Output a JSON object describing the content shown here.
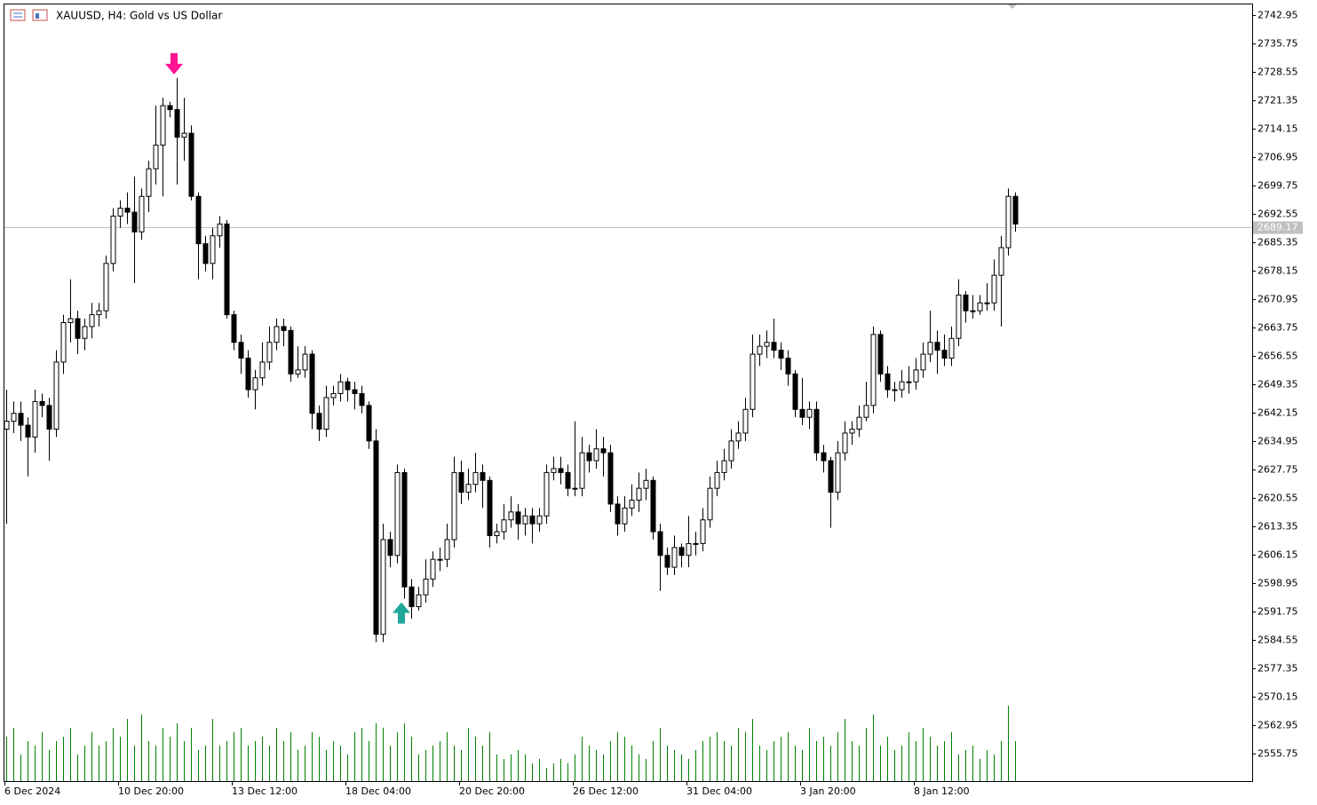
{
  "chart_data": {
    "type": "candlestick",
    "title": "XAUUSD, H4:  Gold vs US Dollar",
    "x": [
      "6 Dec 2024",
      null,
      null,
      null,
      null,
      null,
      null,
      null,
      null,
      null,
      null,
      null,
      null,
      null,
      null,
      null,
      "10 Dec 20:00",
      null,
      null,
      null,
      null,
      null,
      null,
      null,
      null,
      null,
      null,
      null,
      null,
      null,
      null,
      null,
      "13 Dec 12:00",
      null,
      null,
      null,
      null,
      null,
      null,
      null,
      null,
      null,
      null,
      null,
      null,
      null,
      null,
      null,
      "18 Dec 04:00",
      null,
      null,
      null,
      null,
      null,
      null,
      null,
      null,
      null,
      null,
      null,
      null,
      null,
      null,
      null,
      "20 Dec 20:00",
      null,
      null,
      null,
      null,
      null,
      null,
      null,
      null,
      null,
      null,
      null,
      null,
      null,
      null,
      null,
      "26 Dec 12:00",
      null,
      null,
      null,
      null,
      null,
      null,
      null,
      null,
      null,
      null,
      null,
      null,
      null,
      null,
      null,
      "31 Dec 04:00",
      null,
      null,
      null,
      null,
      null,
      null,
      null,
      null,
      null,
      null,
      null,
      null,
      null,
      null,
      null,
      "3 Jan 20:00",
      null,
      null,
      null,
      null,
      null,
      null,
      null,
      null,
      null,
      null,
      null,
      null,
      null,
      null,
      null,
      "8 Jan 12:00",
      null,
      null,
      null,
      null,
      null,
      null,
      null,
      null,
      null,
      null,
      null,
      null,
      null,
      null
    ],
    "open": [
      2638,
      2640,
      2642,
      2639,
      2636,
      2645,
      2644,
      2638,
      2655,
      2665,
      2666,
      2661,
      2664,
      2667,
      2668,
      2680,
      2692,
      2694,
      2693,
      2688,
      2697,
      2704,
      2710,
      2720,
      2719,
      2712,
      2713,
      2697,
      2685,
      2680,
      2687,
      2690,
      2667,
      2660,
      2656,
      2648,
      2651,
      2655,
      2660,
      2664,
      2663,
      2652,
      2653,
      2657,
      2642,
      2638,
      2646,
      2647,
      2650,
      2648,
      2647,
      2644,
      2635,
      2586,
      2610,
      2606,
      2627,
      2598,
      2593,
      2596,
      2600,
      2605,
      2605,
      2610,
      2627,
      2622,
      2624,
      2627,
      2625,
      2611,
      2612,
      2615,
      2617,
      2614,
      2616,
      2614,
      2616,
      2627,
      2628,
      2627,
      2623,
      2623,
      2632,
      2630,
      2633,
      2632,
      2619,
      2614,
      2618,
      2620,
      2623,
      2625,
      2612,
      2606,
      2603,
      2608,
      2606,
      2609,
      2609,
      2615,
      2623,
      2627,
      2630,
      2635,
      2637,
      2643,
      2657,
      2659,
      2660,
      2658,
      2656,
      2652,
      2643,
      2641,
      2643,
      2632,
      2630,
      2622,
      2632,
      2637,
      2638,
      2641,
      2644,
      2662,
      2652,
      2648,
      2648,
      2650,
      2650,
      2653,
      2657,
      2660,
      2658,
      2656,
      2661,
      2672,
      2668,
      2668,
      2670,
      2670,
      2677,
      2684,
      2697
    ],
    "high": [
      2648,
      2645,
      2645,
      2641,
      2648,
      2647,
      2646,
      2658,
      2667,
      2676,
      2668,
      2666,
      2670,
      2670,
      2682,
      2694,
      2696,
      2698,
      2702,
      2699,
      2706,
      2720,
      2722,
      2721,
      2727,
      2722,
      2715,
      2698,
      2687,
      2689,
      2692,
      2691,
      2668,
      2662,
      2658,
      2653,
      2660,
      2664,
      2666,
      2666,
      2664,
      2659,
      2659,
      2658,
      2644,
      2649,
      2649,
      2652,
      2651,
      2650,
      2649,
      2645,
      2638,
      2614,
      2612,
      2629,
      2628,
      2600,
      2598,
      2605,
      2607,
      2608,
      2614,
      2631,
      2630,
      2628,
      2632,
      2629,
      2626,
      2614,
      2619,
      2621,
      2619,
      2618,
      2618,
      2618,
      2629,
      2631,
      2631,
      2629,
      2640,
      2636,
      2634,
      2638,
      2636,
      2634,
      2621,
      2621,
      2624,
      2627,
      2628,
      2626,
      2614,
      2608,
      2611,
      2609,
      2616,
      2612,
      2618,
      2626,
      2630,
      2633,
      2638,
      2640,
      2646,
      2662,
      2662,
      2663,
      2666,
      2660,
      2658,
      2653,
      2651,
      2645,
      2645,
      2634,
      2631,
      2635,
      2640,
      2640,
      2644,
      2650,
      2664,
      2663,
      2654,
      2650,
      2653,
      2654,
      2656,
      2660,
      2668,
      2663,
      2662,
      2664,
      2676,
      2673,
      2672,
      2672,
      2675,
      2681,
      2687,
      2699,
      2698
    ],
    "low": [
      2614,
      2637,
      2635,
      2626,
      2632,
      2641,
      2630,
      2636,
      2652,
      2660,
      2657,
      2658,
      2661,
      2664,
      2666,
      2678,
      2689,
      2690,
      2675,
      2686,
      2693,
      2700,
      2697,
      2717,
      2700,
      2706,
      2696,
      2676,
      2678,
      2676,
      2684,
      2666,
      2658,
      2652,
      2646,
      2643,
      2649,
      2653,
      2658,
      2659,
      2650,
      2651,
      2651,
      2638,
      2635,
      2636,
      2644,
      2645,
      2645,
      2643,
      2642,
      2633,
      2584,
      2584,
      2603,
      2604,
      2595,
      2590,
      2592,
      2594,
      2598,
      2602,
      2603,
      2608,
      2619,
      2620,
      2622,
      2618,
      2608,
      2609,
      2610,
      2613,
      2610,
      2611,
      2609,
      2612,
      2614,
      2625,
      2624,
      2621,
      2621,
      2621,
      2627,
      2628,
      2626,
      2617,
      2611,
      2612,
      2616,
      2617,
      2620,
      2610,
      2597,
      2601,
      2601,
      2603,
      2603,
      2606,
      2607,
      2613,
      2621,
      2625,
      2628,
      2633,
      2635,
      2641,
      2654,
      2656,
      2656,
      2653,
      2649,
      2641,
      2639,
      2638,
      2630,
      2627,
      2613,
      2620,
      2630,
      2634,
      2636,
      2640,
      2642,
      2650,
      2646,
      2645,
      2646,
      2647,
      2648,
      2651,
      2655,
      2652,
      2654,
      2654,
      2659,
      2665,
      2666,
      2667,
      2668,
      2668,
      2664,
      2682,
      2688
    ],
    "close": [
      2640,
      2642,
      2639,
      2636,
      2645,
      2644,
      2638,
      2655,
      2665,
      2666,
      2661,
      2664,
      2667,
      2668,
      2680,
      2692,
      2694,
      2693,
      2688,
      2697,
      2704,
      2710,
      2720,
      2719,
      2712,
      2713,
      2697,
      2685,
      2680,
      2687,
      2690,
      2667,
      2660,
      2656,
      2648,
      2651,
      2655,
      2660,
      2664,
      2663,
      2652,
      2653,
      2657,
      2642,
      2638,
      2646,
      2647,
      2650,
      2648,
      2647,
      2644,
      2635,
      2586,
      2610,
      2606,
      2627,
      2598,
      2593,
      2596,
      2600,
      2605,
      2605,
      2610,
      2627,
      2622,
      2624,
      2627,
      2625,
      2611,
      2612,
      2615,
      2617,
      2614,
      2616,
      2614,
      2616,
      2627,
      2628,
      2627,
      2623,
      2623,
      2632,
      2630,
      2633,
      2632,
      2619,
      2614,
      2618,
      2620,
      2623,
      2625,
      2612,
      2606,
      2603,
      2608,
      2606,
      2609,
      2609,
      2615,
      2623,
      2627,
      2630,
      2635,
      2637,
      2643,
      2657,
      2659,
      2660,
      2658,
      2656,
      2652,
      2643,
      2641,
      2643,
      2632,
      2630,
      2622,
      2632,
      2637,
      2638,
      2641,
      2644,
      2662,
      2652,
      2648,
      2648,
      2650,
      2650,
      2653,
      2657,
      2660,
      2658,
      2656,
      2661,
      2672,
      2668,
      2668,
      2670,
      2670,
      2677,
      2684,
      2697,
      2690
    ],
    "volumes": [
      50,
      60,
      30,
      45,
      40,
      55,
      35,
      45,
      50,
      60,
      30,
      40,
      55,
      40,
      45,
      60,
      50,
      70,
      40,
      75,
      45,
      40,
      60,
      50,
      65,
      45,
      60,
      35,
      40,
      70,
      40,
      45,
      55,
      60,
      40,
      45,
      50,
      40,
      60,
      45,
      55,
      35,
      40,
      55,
      50,
      35,
      45,
      40,
      30,
      55,
      60,
      45,
      65,
      60,
      40,
      55,
      65,
      50,
      30,
      35,
      40,
      45,
      55,
      40,
      35,
      60,
      50,
      40,
      55,
      30,
      25,
      30,
      35,
      30,
      20,
      25,
      15,
      20,
      25,
      20,
      30,
      50,
      40,
      35,
      30,
      45,
      55,
      50,
      40,
      30,
      25,
      45,
      60,
      40,
      35,
      30,
      25,
      35,
      45,
      50,
      55,
      45,
      40,
      60,
      55,
      70,
      40,
      35,
      45,
      50,
      55,
      40,
      35,
      60,
      45,
      50,
      40,
      55,
      70,
      45,
      40,
      60,
      75,
      40,
      50,
      35,
      40,
      55,
      45,
      60,
      50,
      40,
      45,
      55,
      30,
      35,
      40,
      25,
      35,
      30,
      45,
      85,
      45
    ],
    "up_color": "#ffffff",
    "down_color": "#000000",
    "volume_color": "#008000",
    "current_price": 2689.17,
    "arrows": [
      {
        "index": 24,
        "direction": "down",
        "color": "#ff1493"
      },
      {
        "index": 56,
        "direction": "up",
        "color": "#20a89a"
      }
    ],
    "ylim": [
      2548.8,
      2745.65
    ],
    "yticks": [
      2742.95,
      2735.75,
      2728.55,
      2721.35,
      2714.15,
      2706.95,
      2699.75,
      2692.55,
      2685.35,
      2678.15,
      2670.95,
      2663.75,
      2656.55,
      2649.35,
      2642.15,
      2634.95,
      2627.75,
      2620.55,
      2613.35,
      2606.15,
      2598.95,
      2591.75,
      2584.55,
      2577.35,
      2570.15,
      2562.95,
      2555.75
    ]
  }
}
